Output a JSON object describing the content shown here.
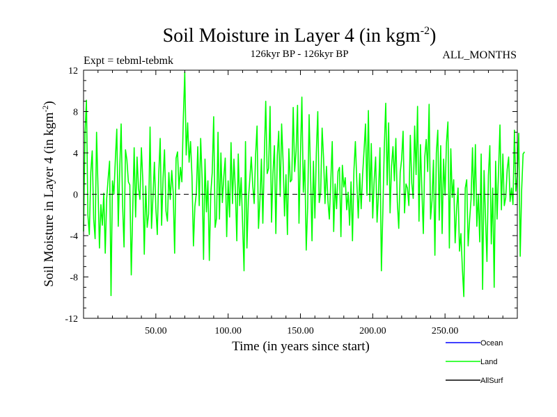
{
  "chart_data": {
    "type": "line",
    "title_main": "Soil Moisture in Layer 4 (in kgm",
    "title_sup": "-2",
    "title_close": ")",
    "expt_label": "Expt = tebml-tebmk",
    "period_label": "126kyr BP - 126kyr BP",
    "months_label": "ALL_MONTHS",
    "xlabel": "Time (in years since start)",
    "ylabel_main": "Soil Moisture in Layer 4 (in kgm",
    "ylabel_sup": "-2",
    "ylabel_close": ")",
    "xlim": [
      0,
      300
    ],
    "ylim": [
      -12,
      12
    ],
    "xticks": [
      50,
      100,
      150,
      200,
      250
    ],
    "xtick_labels": [
      "50.00",
      "100.00",
      "150.00",
      "200.00",
      "250.00"
    ],
    "yticks": [
      -12,
      -8,
      -4,
      0,
      4,
      8,
      12
    ],
    "ytick_labels": [
      "-12",
      "-8",
      "-4",
      "0",
      "4",
      "8",
      "12"
    ],
    "zero_line": 0,
    "legend": [
      {
        "name": "Ocean",
        "color": "#0000ff"
      },
      {
        "name": "Land",
        "color": "#00ff00"
      },
      {
        "name": "AllSurf",
        "color": "#000000"
      }
    ],
    "series": [
      {
        "name": "Land",
        "color": "#00ff00",
        "x_start": 0,
        "x_step": 1,
        "values": [
          -3.6,
          5.9,
          9.1,
          -2.0,
          -3.9,
          2.1,
          4.2,
          -2.4,
          -4.3,
          6.0,
          0.6,
          -5.2,
          -1.0,
          -3.0,
          0.1,
          -5.7,
          -0.4,
          1.5,
          3.2,
          -9.8,
          1.3,
          0.0,
          3.4,
          6.3,
          -3.1,
          2.3,
          6.8,
          -1.0,
          -5.1,
          4.3,
          3.3,
          1.2,
          0.9,
          -7.8,
          -1.6,
          4.5,
          -2.2,
          3.6,
          0.6,
          -0.5,
          4.5,
          1.3,
          -5.8,
          0.8,
          -3.2,
          -1.9,
          6.5,
          -3.3,
          -0.3,
          3.1,
          -1.3,
          -3.9,
          1.9,
          5.4,
          -3.0,
          1.6,
          4.3,
          -1.6,
          -2.6,
          2.1,
          -0.5,
          2.3,
          0.2,
          -5.7,
          3.5,
          4.1,
          0.5,
          2.6,
          1.2,
          7.3,
          11.8,
          3.8,
          6.9,
          3.1,
          5.1,
          1.7,
          -5.0,
          -1.2,
          0.1,
          4.6,
          -1.1,
          5.4,
          1.5,
          -6.3,
          3.4,
          -1.7,
          1.3,
          -6.4,
          0.1,
          2.1,
          7.5,
          -3.2,
          -2.3,
          6.0,
          -2.4,
          4.0,
          -0.8,
          1.7,
          3.5,
          -4.1,
          1.3,
          -2.2,
          5.0,
          -0.9,
          3.4,
          0.4,
          -4.5,
          3.9,
          -1.1,
          1.6,
          -2.9,
          -7.4,
          5.1,
          -5.2,
          -0.5,
          1.5,
          3.6,
          0.9,
          -0.9,
          3.8,
          6.6,
          -3.3,
          -0.6,
          3.4,
          -2.8,
          3.4,
          9.0,
          2.0,
          2.5,
          8.5,
          -2.7,
          2.0,
          4.7,
          -3.8,
          3.7,
          6.1,
          -0.2,
          6.8,
          3.2,
          -2.1,
          1.9,
          -3.9,
          4.4,
          1.2,
          1.4,
          8.4,
          2.2,
          4.2,
          8.6,
          -2.8,
          3.7,
          9.4,
          0.2,
          3.3,
          -5.4,
          -1.2,
          7.7,
          2.0,
          -4.5,
          3.2,
          -2.3,
          4.0,
          8.0,
          -0.8,
          0.2,
          6.4,
          3.5,
          -0.9,
          2.7,
          -0.6,
          -2.4,
          1.3,
          5.1,
          -3.6,
          1.0,
          -1.4,
          2.2,
          2.6,
          -4.1,
          2.8,
          0.7,
          1.6,
          -1.5,
          0.2,
          -3.0,
          1.2,
          -4.5,
          2.3,
          5.1,
          1.2,
          -2.3,
          2.0,
          -1.4,
          1.9,
          4.2,
          6.8,
          -0.1,
          8.1,
          -0.7,
          4.9,
          -2.3,
          1.4,
          3.6,
          -2.7,
          0.1,
          4.5,
          -7.4,
          -1.7,
          4.5,
          8.8,
          0.9,
          6.9,
          -1.8,
          2.7,
          4.6,
          1.3,
          5.4,
          -0.7,
          -3.3,
          2.1,
          3.4,
          6.1,
          -1.8,
          1.0,
          0.6,
          -1.1,
          5.7,
          1.1,
          -0.4,
          6.6,
          1.9,
          8.5,
          -2.6,
          4.8,
          0.4,
          -3.8,
          3.6,
          5.3,
          2.2,
          8.7,
          -2.4,
          -0.6,
          3.3,
          -5.9,
          4.0,
          6.2,
          -2.5,
          4.7,
          -3.8,
          3.4,
          -0.1,
          5.0,
          7.0,
          -5.2,
          4.4,
          -0.3,
          1.4,
          -4.7,
          -1.5,
          0.6,
          -5.5,
          -3.8,
          -7.2,
          -9.9,
          0.6,
          1.4,
          -5.0,
          -2.5,
          -0.5,
          4.5,
          -1.1,
          4.8,
          -3.1,
          0.0,
          -4.6,
          3.9,
          -9.2,
          2.3,
          -2.3,
          -6.5,
          1.8,
          4.7,
          -4.8,
          0.6,
          -9.0,
          3.2,
          -2.4,
          2.2,
          6.7,
          -1.5,
          3.9,
          -1.1,
          -0.3,
          2.4,
          3.6,
          -0.7,
          0.6,
          -1.0,
          6.2,
          0.3,
          1.8,
          5.9,
          -6.0,
          0.4,
          3.9,
          4.1
        ]
      }
    ]
  }
}
